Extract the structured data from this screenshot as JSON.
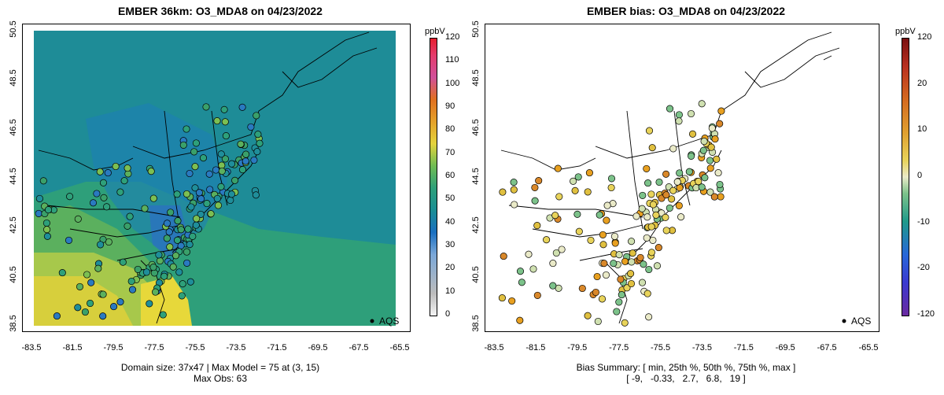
{
  "left_panel": {
    "title": "EMBER 36km: O3_MDA8 on 04/23/2022",
    "colorbar_title": "ppbV",
    "colorbar_ticks": [
      "120",
      "110",
      "100",
      "90",
      "80",
      "70",
      "60",
      "50",
      "40",
      "30",
      "20",
      "10",
      "0"
    ],
    "footer_line1": "Domain size: 37x47 | Max Model = 75 at (3, 15)",
    "footer_line2": "Max Obs: 63",
    "legend_label": "AQS"
  },
  "right_panel": {
    "title": "EMBER bias: O3_MDA8 on 04/23/2022",
    "colorbar_title": "ppbV",
    "colorbar_ticks": [
      "120",
      "20",
      "10",
      "0",
      "-10",
      "-20",
      "-120"
    ],
    "footer_line1": "Bias Summary: [ min, 25th %, 50th %, 75th %, max ]",
    "footer_line2": "[ -9,   -0.33,   2.7,   6.8,   19 ]",
    "legend_label": "AQS"
  },
  "x_ticks": [
    "-83.5",
    "-81.5",
    "-79.5",
    "-77.5",
    "-75.5",
    "-73.5",
    "-71.5",
    "-69.5",
    "-67.5",
    "-65.5"
  ],
  "y_ticks": [
    "38.5",
    "40.5",
    "42.5",
    "44.5",
    "46.5",
    "48.5",
    "50.5"
  ],
  "colors": {
    "ocean_model": "#1f8e9a",
    "land_model": "#2ea07a",
    "high_model": "#a8c84a",
    "peak_model": "#e8d33a",
    "bias_pos": "#e8a020",
    "bias_neg": "#7cc28a",
    "bias_zero": "#e6e6b8"
  }
}
